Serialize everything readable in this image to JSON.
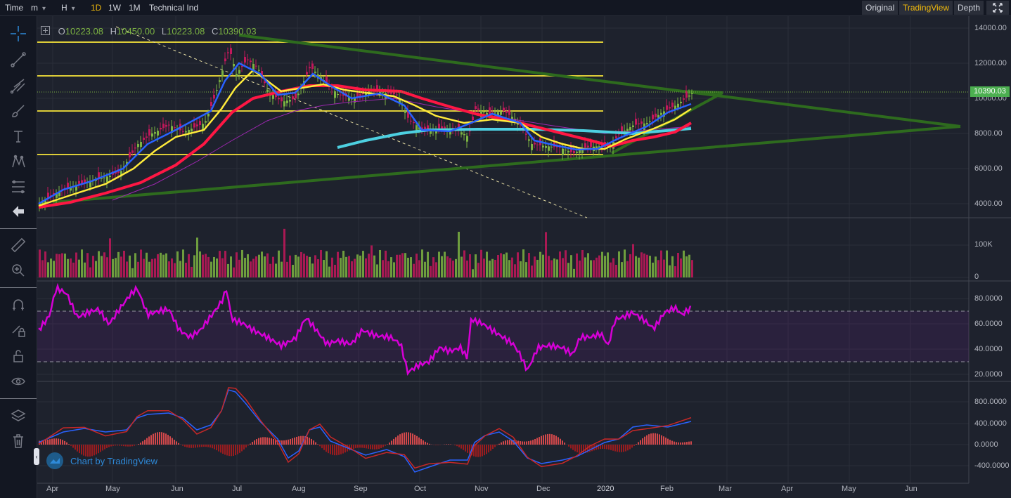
{
  "toolbar": {
    "time_label": "Time",
    "minute_label": "m",
    "hour_label": "H",
    "intervals": [
      "1D",
      "1W",
      "1M"
    ],
    "active_interval": "1D",
    "indicator_label": "Technical Ind",
    "views": [
      "Original",
      "TradingView",
      "Depth"
    ],
    "active_view": "TradingView",
    "fullscreen_icon": "expand-icon"
  },
  "sidebar": {
    "tools": [
      "crosshair-icon",
      "trend-line-icon",
      "pitchfork-icon",
      "brush-icon",
      "text-icon",
      "pattern-icon",
      "fib-icon",
      "back-arrow-icon",
      "ruler-icon",
      "zoom-icon",
      "magnet-icon",
      "lock-draw-icon",
      "unlock-icon",
      "eye-icon",
      "layers-icon",
      "trash-icon"
    ]
  },
  "legend": {
    "o_label": "O",
    "o_value": "10223.08",
    "h_label": "H",
    "h_value": "10450.00",
    "l_label": "L",
    "l_value": "10223.08",
    "c_label": "C",
    "c_value": "10390.03"
  },
  "price_axis": [
    "14000.00",
    "12000.00",
    "10000.00",
    "8000.00",
    "6000.00",
    "4000.00"
  ],
  "last_price": "10390.03",
  "volume_axis": [
    "100K",
    "0"
  ],
  "rsi_axis": [
    "80.0000",
    "60.0000",
    "40.0000",
    "20.0000"
  ],
  "macd_axis": [
    "800.0000",
    "400.0000",
    "0.0000",
    "-400.0000"
  ],
  "time_axis": [
    "Apr",
    "May",
    "Jun",
    "Jul",
    "Aug",
    "Sep",
    "Oct",
    "Nov",
    "Dec",
    "2020",
    "Feb",
    "Mar",
    "Apr",
    "May",
    "Jun"
  ],
  "branding": "Chart by TradingView",
  "colors": {
    "background": "#1e222d",
    "up": "#7cb342",
    "down": "#c2185b",
    "accent": "#f0b90b",
    "rsi": "#d500d5",
    "ma_yellow": "#ffeb3b",
    "ma_red": "#ff1744",
    "ma_blue": "#2962ff",
    "ma_cyan": "#4dd0e1",
    "ma_purple": "#9c27b0",
    "triangle": "#2e6b1e"
  }
}
